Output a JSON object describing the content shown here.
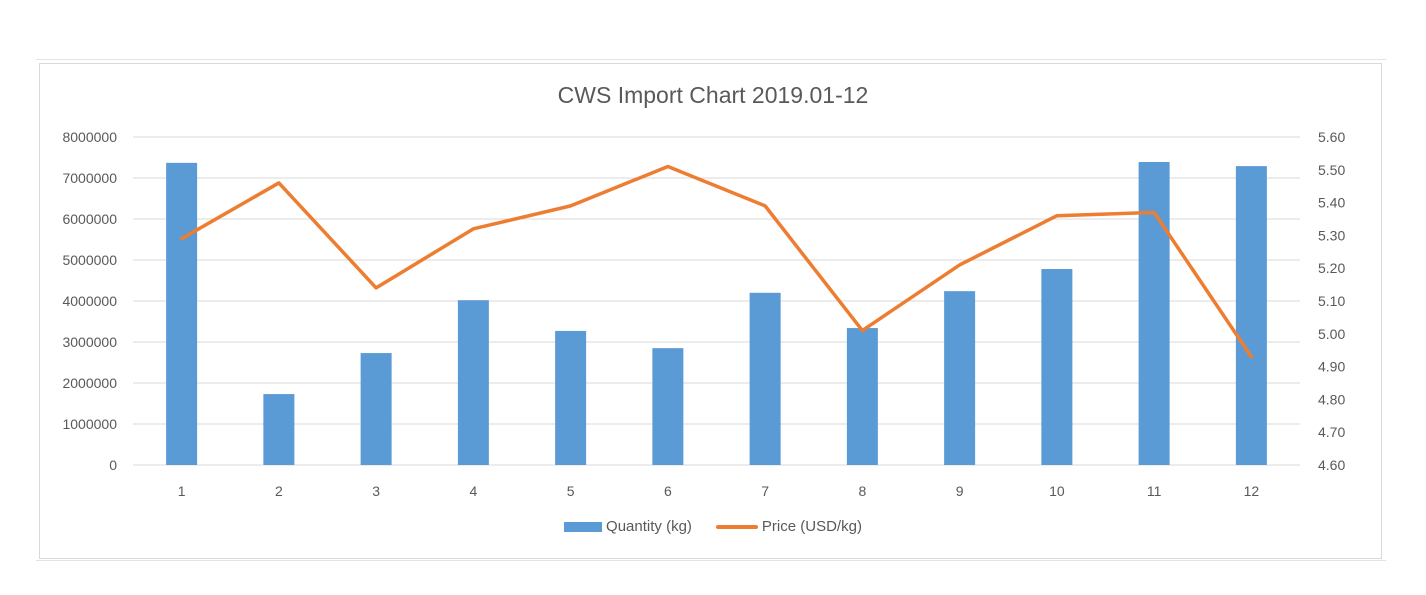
{
  "chart_data": {
    "type": "bar+line",
    "title": "CWS Import Chart 2019.01-12",
    "categories": [
      "1",
      "2",
      "3",
      "4",
      "5",
      "6",
      "7",
      "8",
      "9",
      "10",
      "11",
      "12"
    ],
    "series": [
      {
        "name": "Quantity (kg)",
        "type": "bar",
        "axis": "left",
        "color": "#5b9bd5",
        "values": [
          7370000,
          1730000,
          2730000,
          4020000,
          3270000,
          2850000,
          4200000,
          3340000,
          4240000,
          4780000,
          7390000,
          7290000
        ]
      },
      {
        "name": "Price (USD/kg)",
        "type": "line",
        "axis": "right",
        "color": "#ed7d31",
        "values": [
          5.29,
          5.46,
          5.14,
          5.32,
          5.39,
          5.51,
          5.39,
          5.01,
          5.21,
          5.36,
          5.37,
          4.93
        ]
      }
    ],
    "left_axis": {
      "ylim": [
        0,
        8000000
      ],
      "ticks": [
        "0",
        "1000000",
        "2000000",
        "3000000",
        "4000000",
        "5000000",
        "6000000",
        "7000000",
        "8000000"
      ]
    },
    "right_axis": {
      "ylim": [
        4.6,
        5.6
      ],
      "ticks": [
        "4.60",
        "4.70",
        "4.80",
        "4.90",
        "5.00",
        "5.10",
        "5.20",
        "5.30",
        "5.40",
        "5.50",
        "5.60"
      ]
    },
    "xlabel": "",
    "ylabel": "",
    "grid": true,
    "legend_position": "bottom"
  },
  "legend": {
    "items": [
      {
        "label": "Quantity (kg)",
        "color": "#5b9bd5"
      },
      {
        "label": "Price (USD/kg)",
        "color": "#ed7d31"
      }
    ]
  }
}
